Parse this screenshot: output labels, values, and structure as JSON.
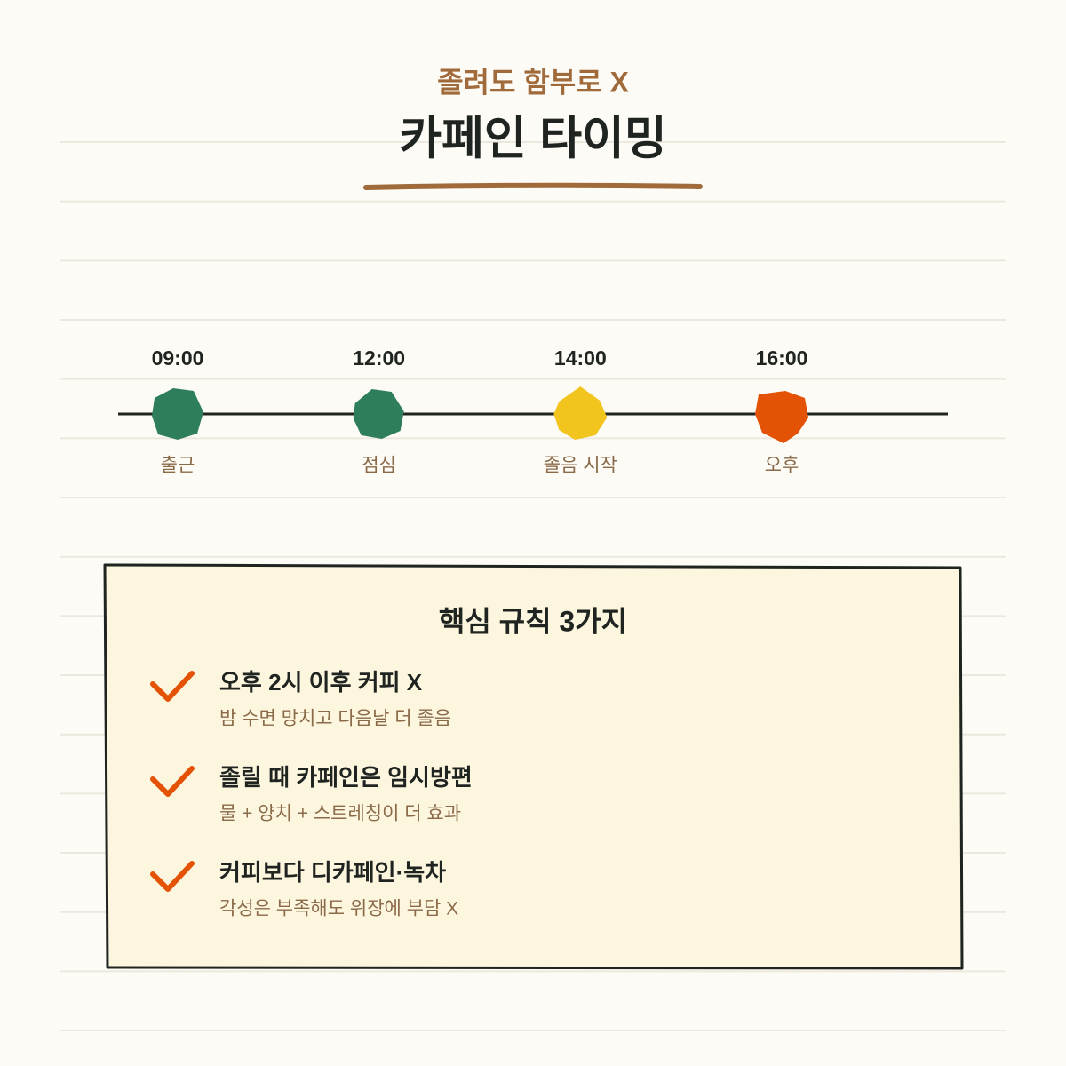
{
  "header": {
    "subtitle": "졸려도 함부로 X",
    "title": "카페인 타이밍"
  },
  "timeline": [
    {
      "time": "09:00",
      "label": "출근"
    },
    {
      "time": "12:00",
      "label": "점심"
    },
    {
      "time": "14:00",
      "label": "졸음 시작"
    },
    {
      "time": "16:00",
      "label": "오후"
    }
  ],
  "rules": {
    "heading": "핵심 규칙 3가지",
    "items": [
      {
        "title": "오후 2시 이후 커피 X",
        "detail": "밤 수면 망치고 다음날 더 졸음"
      },
      {
        "title": "졸릴 때 카페인은 임시방편",
        "detail": "물 + 양치 + 스트레칭이 더 효과"
      },
      {
        "title": "커피보다 디카페인·녹차",
        "detail": "각성은 부족해도 위장에 부담 X"
      }
    ]
  }
}
